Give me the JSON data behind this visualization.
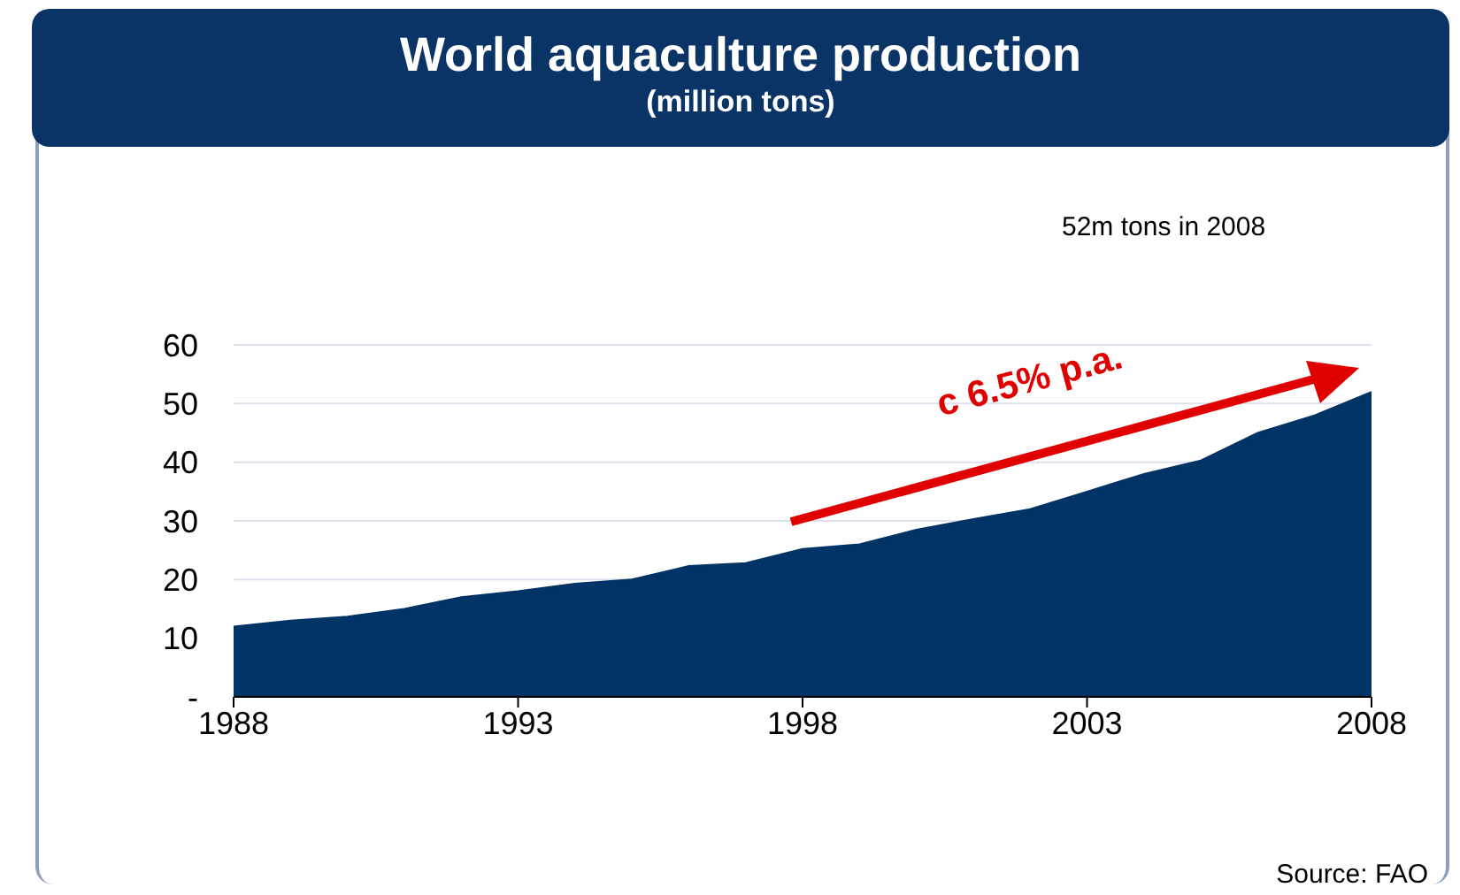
{
  "chart_data": {
    "type": "area",
    "title": "World aquaculture production",
    "subtitle": "(million tons)",
    "annotations": [
      "52m tons in 2008",
      "c 6.5% p.a.",
      "Source: FAO"
    ],
    "x": [
      1988,
      1989,
      1990,
      1991,
      1992,
      1993,
      1994,
      1995,
      1996,
      1997,
      1998,
      1999,
      2000,
      2001,
      2002,
      2003,
      2004,
      2005,
      2006,
      2007,
      2008
    ],
    "series": [
      {
        "color": "#003366",
        "values": [
          12,
          13,
          13.7,
          15,
          17,
          18,
          19.3,
          20,
          22.3,
          22.8,
          25.2,
          26,
          28.5,
          30.3,
          32,
          35,
          38,
          40.3,
          45,
          48,
          52
        ]
      }
    ],
    "xlim": [
      1988,
      2008
    ],
    "xticks": [
      1988,
      1993,
      1998,
      2003,
      2008
    ],
    "ylim": [
      0,
      60
    ],
    "yticks": [
      {
        "value": 0,
        "label": "-"
      },
      10,
      20,
      30,
      40,
      50,
      60
    ],
    "grid": "y"
  }
}
